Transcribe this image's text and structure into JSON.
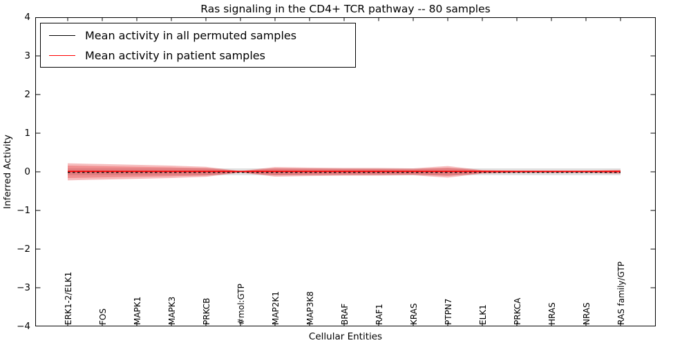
{
  "title": "Ras signaling in the CD4+ TCR pathway -- 80 samples",
  "axes": {
    "ylabel": "Inferred Activity",
    "xlabel": "Cellular Entities",
    "yticks": [
      "4",
      "3",
      "2",
      "1",
      "0",
      "−1",
      "−2",
      "−3",
      "−4"
    ]
  },
  "legend": {
    "items": [
      {
        "label": "Mean activity in all permuted samples",
        "color": "#000000"
      },
      {
        "label": "Mean activity in patient samples",
        "color": "#ff0000"
      }
    ]
  },
  "chart_data": {
    "type": "line",
    "title": "Ras signaling in the CD4+ TCR pathway -- 80 samples",
    "xlabel": "Cellular Entities",
    "ylabel": "Inferred Activity",
    "ylim": [
      -4,
      4
    ],
    "legend_position": "upper left",
    "grid": false,
    "categories": [
      "ERK1-2/ELK1",
      "FOS",
      "MAPK1",
      "MAPK3",
      "PRKCB",
      "#mol:GTP",
      "MAP2K1",
      "MAP3K8",
      "BRAF",
      "RAF1",
      "KRAS",
      "PTPN7",
      "ELK1",
      "PRKCA",
      "HRAS",
      "NRAS",
      "RAS family/GTP"
    ],
    "series": [
      {
        "name": "Mean activity in all permuted samples",
        "color": "#000000",
        "style": "dashed",
        "values": [
          0,
          0,
          0,
          0,
          0,
          0,
          0,
          0,
          0,
          0,
          0,
          0,
          0,
          0,
          0,
          0,
          0
        ]
      },
      {
        "name": "Mean activity in patient samples",
        "color": "#ff0000",
        "style": "solid",
        "values": [
          0,
          0,
          0,
          0,
          0,
          0,
          0,
          0,
          0,
          0,
          0,
          0,
          0,
          0,
          0,
          0,
          0
        ]
      }
    ],
    "bands": [
      {
        "name": "permuted-samples-spread",
        "fill": "rgba(120,120,120,0.22)",
        "half_widths": [
          0.09,
          0.09,
          0.09,
          0.09,
          0.09,
          0.09,
          0.09,
          0.09,
          0.09,
          0.09,
          0.09,
          0.09,
          0.09,
          0.09,
          0.09,
          0.09,
          0.09
        ]
      },
      {
        "name": "patient-samples-spread-outer",
        "fill": "rgba(224,36,40,0.30)",
        "half_widths": [
          0.22,
          0.2,
          0.18,
          0.16,
          0.13,
          0.02,
          0.125,
          0.11,
          0.1,
          0.1,
          0.09,
          0.15,
          0.045,
          0.03,
          0.03,
          0.03,
          0.05
        ]
      },
      {
        "name": "patient-samples-spread-inner",
        "fill": "rgba(224,36,40,0.30)",
        "half_widths": [
          0.16,
          0.145,
          0.13,
          0.115,
          0.095,
          0.015,
          0.09,
          0.08,
          0.073,
          0.072,
          0.065,
          0.108,
          0.032,
          0.022,
          0.022,
          0.022,
          0.036
        ]
      }
    ]
  }
}
